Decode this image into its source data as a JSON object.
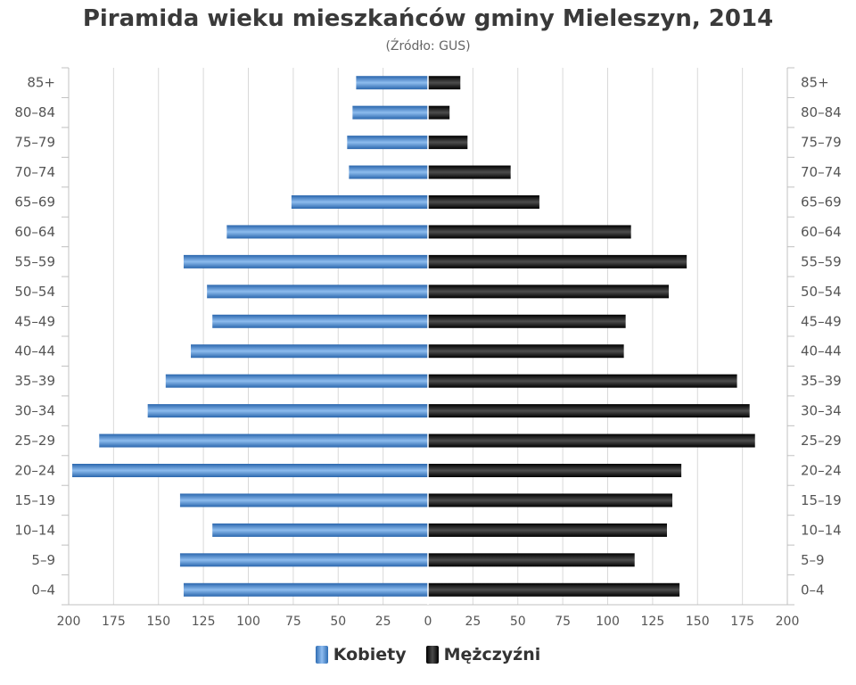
{
  "chart_data": {
    "type": "bar",
    "orientation": "horizontal-population-pyramid",
    "title": "Piramida wieku mieszkańców gminy Mieleszyn, 2014",
    "subtitle": "(Źródło: GUS)",
    "categories": [
      "0–4",
      "5–9",
      "10–14",
      "15–19",
      "20–24",
      "25–29",
      "30–34",
      "35–39",
      "40–44",
      "45–49",
      "50–54",
      "55–59",
      "60–64",
      "65–69",
      "70–74",
      "75–79",
      "80–84",
      "85+"
    ],
    "series": [
      {
        "name": "Kobiety",
        "side": "left",
        "color": "#3d7cc4",
        "values": [
          136,
          138,
          120,
          138,
          198,
          183,
          156,
          146,
          132,
          120,
          123,
          136,
          112,
          76,
          44,
          45,
          42,
          40
        ]
      },
      {
        "name": "Mężczyźni",
        "side": "right",
        "color": "#111111",
        "values": [
          140,
          115,
          133,
          136,
          141,
          182,
          179,
          172,
          109,
          110,
          134,
          144,
          113,
          62,
          46,
          22,
          12,
          18
        ]
      }
    ],
    "xlim": [
      -200,
      200
    ],
    "x_ticks": [
      -200,
      -175,
      -150,
      -125,
      -100,
      -75,
      -50,
      -25,
      0,
      25,
      50,
      75,
      100,
      125,
      150,
      175,
      200
    ],
    "x_tick_labels": [
      "200",
      "175",
      "150",
      "125",
      "100",
      "75",
      "50",
      "25",
      "0",
      "25",
      "50",
      "75",
      "100",
      "125",
      "150",
      "175",
      "200"
    ],
    "grid": true,
    "legend_position": "bottom-center"
  }
}
